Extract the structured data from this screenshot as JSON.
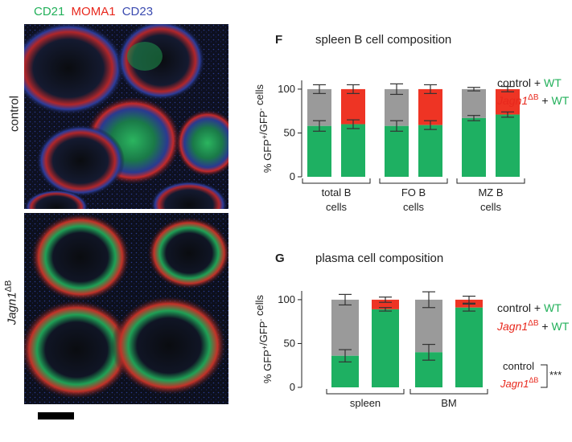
{
  "colors": {
    "green": "#1eb062",
    "red": "#ee3424",
    "blue": "#3b4bb0",
    "gray": "#9a9a9a",
    "greenText": "#22b05a",
    "redText": "#e8281d"
  },
  "micrograph": {
    "stains": [
      {
        "label": "CD21",
        "color": "#22b05a"
      },
      {
        "label": "MOMA1",
        "color": "#e8281d"
      },
      {
        "label": "CD23",
        "color": "#3b4bb0"
      }
    ],
    "row_labels": [
      "control",
      "Jagn1",
      "ΔB"
    ]
  },
  "panels": {
    "F": {
      "letter": "F",
      "title": "spleen B cell composition"
    },
    "G": {
      "letter": "G",
      "title": "plasma cell composition"
    }
  },
  "legend_text": {
    "control": "control",
    "plus": "+",
    "wt": "WT",
    "jagn": "Jagn1",
    "delta": "ΔB",
    "stars": "***"
  },
  "chart_data": [
    {
      "type": "bar",
      "title": "spleen B cell composition",
      "ylabel": "% GFP+/GFP- cells",
      "ylim": [
        0,
        110
      ],
      "yticks": [
        0,
        50,
        100
      ],
      "groups": [
        "total B cells",
        "FO B cells",
        "MZ B cells"
      ],
      "group_lines": [
        [
          "total B",
          "cells"
        ],
        [
          "FO B",
          "cells"
        ],
        [
          "MZ B",
          "cells"
        ]
      ],
      "bars": [
        {
          "group": "total B cells",
          "genotype": "control + WT",
          "gfp_pos": 58,
          "gfp_pos_err": 6,
          "total": 100,
          "total_err": 5
        },
        {
          "group": "total B cells",
          "genotype": "Jagn1ΔB + WT",
          "gfp_pos": 60,
          "gfp_pos_err": 5,
          "total": 100,
          "total_err": 5
        },
        {
          "group": "FO B cells",
          "genotype": "control + WT",
          "gfp_pos": 58,
          "gfp_pos_err": 6,
          "total": 100,
          "total_err": 6
        },
        {
          "group": "FO B cells",
          "genotype": "Jagn1ΔB + WT",
          "gfp_pos": 59,
          "gfp_pos_err": 5,
          "total": 100,
          "total_err": 5
        },
        {
          "group": "MZ B cells",
          "genotype": "control + WT",
          "gfp_pos": 67,
          "gfp_pos_err": 3,
          "total": 100,
          "total_err": 2
        },
        {
          "group": "MZ B cells",
          "genotype": "Jagn1ΔB + WT",
          "gfp_pos": 71,
          "gfp_pos_err": 3,
          "total": 100,
          "total_err": 3
        }
      ]
    },
    {
      "type": "bar",
      "title": "plasma cell composition",
      "ylabel": "% GFP+/GFP- cells",
      "ylim": [
        0,
        110
      ],
      "yticks": [
        0,
        50,
        100
      ],
      "groups": [
        "spleen",
        "BM"
      ],
      "group_lines": [
        [
          "spleen"
        ],
        [
          "BM"
        ]
      ],
      "bars": [
        {
          "group": "spleen",
          "genotype": "control + WT",
          "gfp_pos": 36,
          "gfp_pos_err": 7,
          "total": 100,
          "total_err": 6
        },
        {
          "group": "spleen",
          "genotype": "Jagn1ΔB + WT",
          "gfp_pos": 89,
          "gfp_pos_err": 2,
          "total": 100,
          "total_err": 3
        },
        {
          "group": "BM",
          "genotype": "control + WT",
          "gfp_pos": 40,
          "gfp_pos_err": 9,
          "total": 100,
          "total_err": 9
        },
        {
          "group": "BM",
          "genotype": "Jagn1ΔB + WT",
          "gfp_pos": 91,
          "gfp_pos_err": 4,
          "total": 100,
          "total_err": 4
        }
      ]
    }
  ]
}
